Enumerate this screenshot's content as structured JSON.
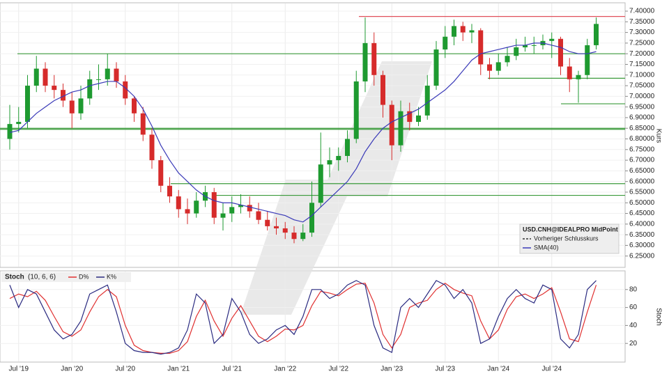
{
  "chart_data": [
    {
      "type": "candlestick",
      "y_label": "Kurs",
      "categories": [
        null,
        "Jul '19",
        null,
        null,
        null,
        null,
        null,
        "Jan '20",
        null,
        null,
        null,
        null,
        null,
        "Jul '20",
        null,
        null,
        null,
        null,
        null,
        "Jan '21",
        null,
        null,
        null,
        null,
        null,
        "Jul '21",
        null,
        null,
        null,
        null,
        null,
        "Jan '22",
        null,
        null,
        null,
        null,
        null,
        "Jul '22",
        null,
        null,
        null,
        null,
        null,
        "Jan '23",
        null,
        null,
        null,
        null,
        null,
        "Jul '23",
        null,
        null,
        null,
        null,
        null,
        "Jan '24",
        null,
        null,
        null,
        null,
        null,
        "Jul '24",
        null,
        null,
        null,
        null,
        null
      ],
      "series": [
        {
          "name": "USD.CNH@IDEALPRO MidPoint",
          "up_color": "#1e9a30",
          "down_color": "#d62b2b",
          "open": [
            6.8,
            6.87,
            6.88,
            7.05,
            7.13,
            7.05,
            7.03,
            6.98,
            6.92,
            6.99,
            7.08,
            7.08,
            7.13,
            7.07,
            6.99,
            6.92,
            6.82,
            6.7,
            6.58,
            6.53,
            6.47,
            6.45,
            6.51,
            6.55,
            6.43,
            6.45,
            6.48,
            6.49,
            6.46,
            6.42,
            6.39,
            6.38,
            6.36,
            6.33,
            6.36,
            6.5,
            6.68,
            6.7,
            6.72,
            6.8,
            7.07,
            7.25,
            7.1,
            6.96,
            6.77,
            6.93,
            6.88,
            6.91,
            7.05,
            7.22,
            7.28,
            7.33,
            7.3,
            7.31,
            7.15,
            7.12,
            7.16,
            7.19,
            7.23,
            7.24,
            7.24,
            7.26,
            7.27,
            7.14,
            7.08,
            7.1,
            7.24
          ],
          "high": [
            6.96,
            6.95,
            7.1,
            7.19,
            7.16,
            7.1,
            7.06,
            7.02,
            7.05,
            7.12,
            7.15,
            7.2,
            7.16,
            7.1,
            7.0,
            6.95,
            6.85,
            6.72,
            6.62,
            6.56,
            6.52,
            6.55,
            6.58,
            6.57,
            6.5,
            6.53,
            6.54,
            6.53,
            6.5,
            6.46,
            6.43,
            6.41,
            6.39,
            6.4,
            6.6,
            6.83,
            6.76,
            6.76,
            6.84,
            7.12,
            7.37,
            7.3,
            7.12,
            6.98,
            6.98,
            6.97,
            6.95,
            7.1,
            7.26,
            7.33,
            7.36,
            7.35,
            7.34,
            7.32,
            7.18,
            7.2,
            7.23,
            7.27,
            7.28,
            7.28,
            7.29,
            7.3,
            7.28,
            7.18,
            7.12,
            7.27,
            7.37
          ],
          "low": [
            6.75,
            6.83,
            6.85,
            7.02,
            7.02,
            6.99,
            6.95,
            6.85,
            6.89,
            6.96,
            7.03,
            7.05,
            7.04,
            6.96,
            6.88,
            6.79,
            6.66,
            6.55,
            6.5,
            6.43,
            6.4,
            6.43,
            6.48,
            6.4,
            6.37,
            6.41,
            6.45,
            6.43,
            6.4,
            6.37,
            6.35,
            6.33,
            6.31,
            6.32,
            6.34,
            6.48,
            6.62,
            6.65,
            6.69,
            6.78,
            7.02,
            7.05,
            6.9,
            6.7,
            6.74,
            6.84,
            6.86,
            6.89,
            7.03,
            7.18,
            7.24,
            7.26,
            7.25,
            7.1,
            7.08,
            7.1,
            7.14,
            7.17,
            7.21,
            7.2,
            7.22,
            7.18,
            7.1,
            7.02,
            6.97,
            7.08,
            7.22
          ],
          "close": [
            6.87,
            6.88,
            7.05,
            7.13,
            7.05,
            7.03,
            6.98,
            6.92,
            6.99,
            7.08,
            7.08,
            7.13,
            7.07,
            6.99,
            6.92,
            6.82,
            6.7,
            6.58,
            6.53,
            6.47,
            6.45,
            6.51,
            6.55,
            6.43,
            6.45,
            6.48,
            6.49,
            6.46,
            6.42,
            6.39,
            6.38,
            6.36,
            6.33,
            6.36,
            6.5,
            6.68,
            6.7,
            6.72,
            6.8,
            7.07,
            7.25,
            7.1,
            6.96,
            6.77,
            6.93,
            6.88,
            6.91,
            7.05,
            7.22,
            7.28,
            7.33,
            7.3,
            7.31,
            7.15,
            7.12,
            7.16,
            7.19,
            7.23,
            7.24,
            7.24,
            7.26,
            7.27,
            7.14,
            7.08,
            7.1,
            7.24,
            7.34
          ]
        },
        {
          "name": "Vorheriger Schlusskurs",
          "color": "#333333",
          "dash": true
        },
        {
          "name": "SMA(40)",
          "color": "#3a3ab8",
          "values": [
            6.83,
            6.84,
            6.88,
            6.92,
            6.95,
            6.98,
            7.0,
            7.02,
            7.03,
            7.05,
            7.06,
            7.07,
            7.07,
            7.04,
            7.0,
            6.94,
            6.86,
            6.77,
            6.7,
            6.64,
            6.6,
            6.56,
            6.53,
            6.51,
            6.5,
            6.5,
            6.49,
            6.48,
            6.47,
            6.46,
            6.45,
            6.44,
            6.42,
            6.41,
            6.44,
            6.48,
            6.52,
            6.56,
            6.6,
            6.66,
            6.74,
            6.8,
            6.85,
            6.88,
            6.9,
            6.92,
            6.94,
            6.97,
            7.0,
            7.03,
            7.07,
            7.12,
            7.17,
            7.2,
            7.21,
            7.22,
            7.23,
            7.24,
            7.24,
            7.25,
            7.25,
            7.24,
            7.23,
            7.21,
            7.2,
            7.2,
            7.21
          ]
        }
      ],
      "hlines": [
        {
          "value": 7.375,
          "color": "#e0505a"
        },
        {
          "value": 7.2,
          "color": "#3a9a3a"
        },
        {
          "value": 6.85,
          "color": "#3a9a3a"
        },
        {
          "value": 6.845,
          "color": "#3a9a3a"
        },
        {
          "value": 6.59,
          "color": "#3a9a3a"
        },
        {
          "value": 6.535,
          "color": "#3a9a3a"
        },
        {
          "value": 7.085,
          "color": "#3a9a3a"
        },
        {
          "value": 6.965,
          "color": "#3a9a3a"
        }
      ],
      "ylim": [
        6.2,
        7.436
      ],
      "yticks": [
        {
          "value": 6.25,
          "label": "6.25000"
        },
        {
          "value": 6.3,
          "label": "6.30000"
        },
        {
          "value": 6.35,
          "label": "6.35000"
        },
        {
          "value": 6.4,
          "label": "6.40000"
        },
        {
          "value": 6.45,
          "label": "6.45000"
        },
        {
          "value": 6.5,
          "label": "6.50000"
        },
        {
          "value": 6.55,
          "label": "6.55000"
        },
        {
          "value": 6.6,
          "label": "6.60000"
        },
        {
          "value": 6.65,
          "label": "6.65000"
        },
        {
          "value": 6.7,
          "label": "6.70000"
        },
        {
          "value": 6.75,
          "label": "6.75000"
        },
        {
          "value": 6.8,
          "label": "6.80000"
        },
        {
          "value": 6.85,
          "label": "6.85000"
        },
        {
          "value": 6.9,
          "label": "6.90000"
        },
        {
          "value": 6.95,
          "label": "6.95000"
        },
        {
          "value": 7.0,
          "label": "7.00000"
        },
        {
          "value": 7.05,
          "label": "7.05000"
        },
        {
          "value": 7.1,
          "label": "7.10000"
        },
        {
          "value": 7.15,
          "label": "7.15000"
        },
        {
          "value": 7.2,
          "label": "7.20000"
        },
        {
          "value": 7.25,
          "label": "7.25000"
        },
        {
          "value": 7.3,
          "label": "7.30000"
        },
        {
          "value": 7.35,
          "label": "7.35000"
        },
        {
          "value": 7.4,
          "label": "7.40000"
        }
      ],
      "grid": true
    },
    {
      "type": "line",
      "title": "Stoch",
      "subtitle": "(10, 6, 6)",
      "y_label": "Stoch",
      "series": [
        {
          "name": "D%",
          "color": "#e03030",
          "values": [
            70,
            75,
            72,
            78,
            68,
            50,
            33,
            28,
            35,
            55,
            72,
            80,
            72,
            40,
            18,
            12,
            10,
            9,
            9,
            12,
            22,
            50,
            68,
            45,
            28,
            48,
            62,
            45,
            28,
            22,
            28,
            36,
            35,
            40,
            62,
            78,
            76,
            73,
            80,
            86,
            87,
            65,
            30,
            15,
            30,
            60,
            65,
            68,
            80,
            87,
            80,
            76,
            73,
            45,
            25,
            35,
            58,
            72,
            75,
            70,
            75,
            82,
            55,
            25,
            22,
            55,
            85
          ]
        },
        {
          "name": "K%",
          "color": "#2a2a80",
          "values": [
            85,
            60,
            80,
            75,
            55,
            35,
            25,
            30,
            45,
            75,
            80,
            85,
            55,
            20,
            12,
            10,
            10,
            8,
            10,
            15,
            35,
            75,
            65,
            20,
            30,
            70,
            55,
            30,
            20,
            25,
            35,
            40,
            30,
            50,
            80,
            80,
            70,
            75,
            85,
            90,
            85,
            40,
            15,
            10,
            60,
            70,
            60,
            75,
            90,
            85,
            70,
            80,
            65,
            20,
            25,
            50,
            70,
            80,
            70,
            65,
            85,
            80,
            25,
            15,
            30,
            80,
            90
          ]
        }
      ],
      "ylim": [
        0,
        100
      ],
      "yticks": [
        20,
        40,
        60,
        80
      ],
      "grid": true
    }
  ]
}
